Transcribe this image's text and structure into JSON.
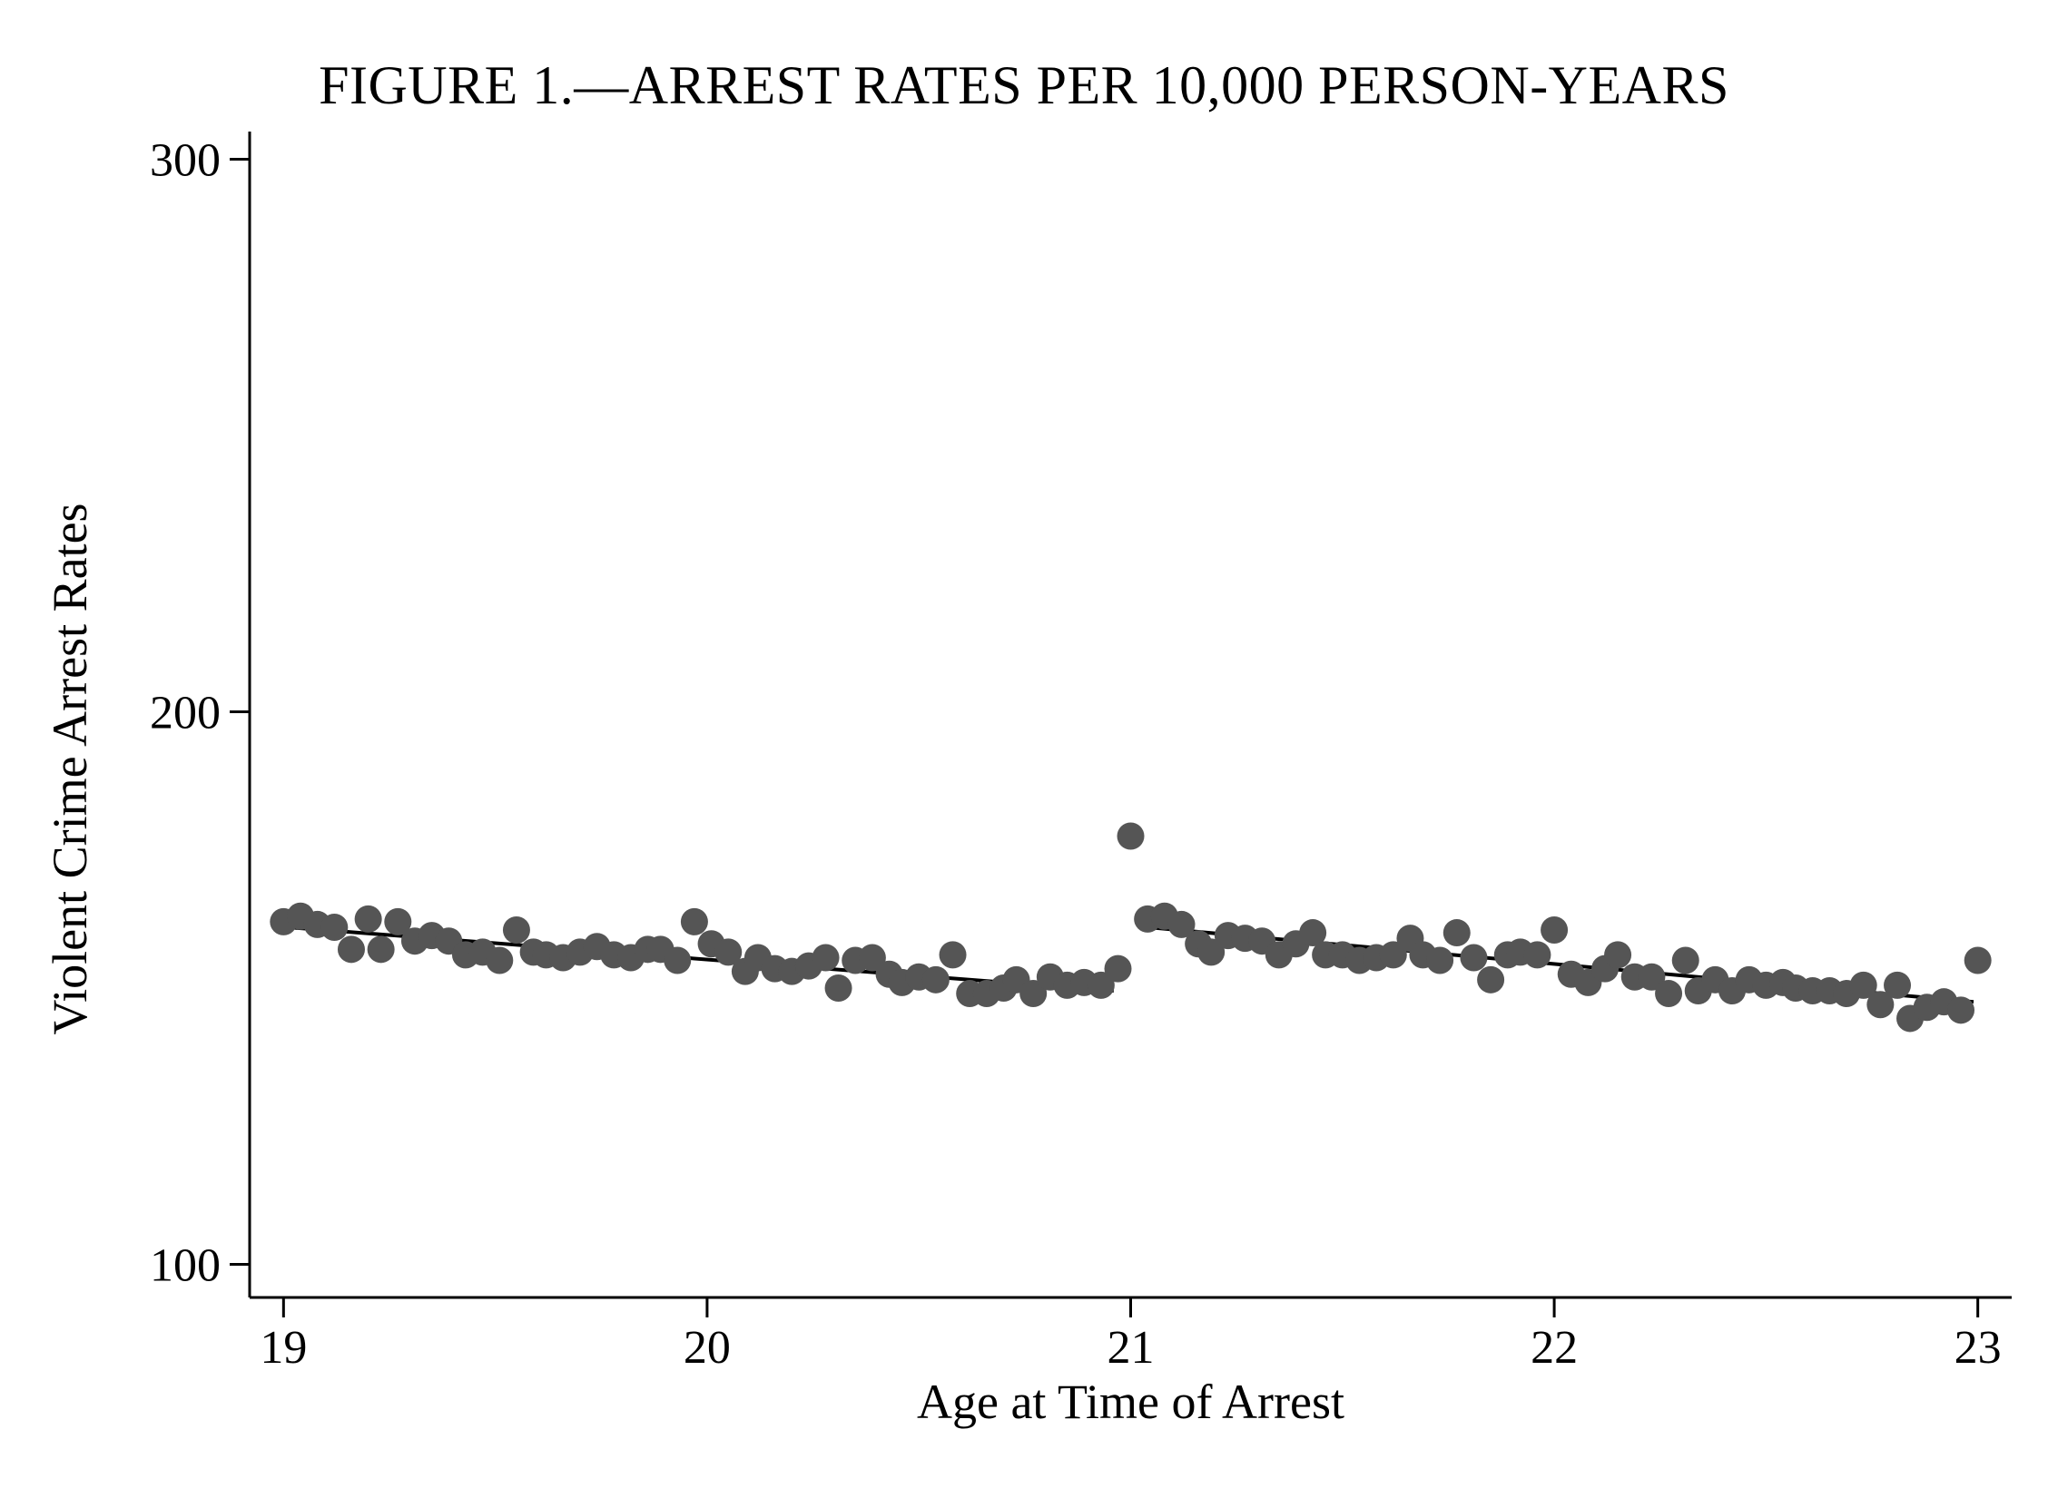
{
  "chart_data": {
    "type": "scatter",
    "title": "FIGURE 1.—ARREST RATES PER 10,000 PERSON-YEARS",
    "xlabel": "Age at Time of Arrest",
    "ylabel": "Violent Crime Arrest Rates",
    "xlim": [
      18.92,
      23.08
    ],
    "ylim": [
      94,
      305
    ],
    "xticks": [
      19,
      20,
      21,
      22,
      23
    ],
    "yticks": [
      100,
      200,
      300
    ],
    "grid": false,
    "legend": "none",
    "colors": {
      "points": "#555555",
      "fit_line": "#000000",
      "axis": "#000000"
    },
    "points": [
      [
        19.0,
        162.0
      ],
      [
        19.04,
        163.0
      ],
      [
        19.08,
        161.5
      ],
      [
        19.12,
        161.0
      ],
      [
        19.16,
        157.0
      ],
      [
        19.2,
        162.5
      ],
      [
        19.23,
        157.0
      ],
      [
        19.27,
        162.0
      ],
      [
        19.31,
        158.5
      ],
      [
        19.35,
        159.5
      ],
      [
        19.39,
        158.5
      ],
      [
        19.43,
        156.0
      ],
      [
        19.47,
        156.5
      ],
      [
        19.51,
        155.0
      ],
      [
        19.55,
        160.5
      ],
      [
        19.59,
        156.5
      ],
      [
        19.62,
        156.0
      ],
      [
        19.66,
        155.5
      ],
      [
        19.7,
        156.5
      ],
      [
        19.74,
        157.5
      ],
      [
        19.78,
        156.0
      ],
      [
        19.82,
        155.5
      ],
      [
        19.86,
        157.0
      ],
      [
        19.89,
        157.0
      ],
      [
        19.93,
        155.0
      ],
      [
        19.97,
        162.0
      ],
      [
        20.01,
        158.0
      ],
      [
        20.05,
        156.5
      ],
      [
        20.09,
        153.0
      ],
      [
        20.12,
        155.5
      ],
      [
        20.16,
        153.5
      ],
      [
        20.2,
        153.0
      ],
      [
        20.24,
        154.0
      ],
      [
        20.28,
        155.5
      ],
      [
        20.31,
        150.0
      ],
      [
        20.35,
        155.0
      ],
      [
        20.39,
        155.5
      ],
      [
        20.43,
        152.5
      ],
      [
        20.46,
        151.0
      ],
      [
        20.5,
        152.0
      ],
      [
        20.54,
        151.5
      ],
      [
        20.58,
        156.0
      ],
      [
        20.62,
        149.0
      ],
      [
        20.66,
        149.0
      ],
      [
        20.7,
        150.0
      ],
      [
        20.73,
        151.5
      ],
      [
        20.77,
        149.0
      ],
      [
        20.81,
        152.0
      ],
      [
        20.85,
        150.5
      ],
      [
        20.89,
        151.0
      ],
      [
        20.93,
        150.5
      ],
      [
        20.97,
        153.5
      ],
      [
        21.0,
        177.5
      ],
      [
        21.04,
        162.5
      ],
      [
        21.08,
        163.0
      ],
      [
        21.12,
        161.5
      ],
      [
        21.16,
        158.0
      ],
      [
        21.19,
        156.5
      ],
      [
        21.23,
        159.5
      ],
      [
        21.27,
        159.0
      ],
      [
        21.31,
        158.5
      ],
      [
        21.35,
        156.0
      ],
      [
        21.39,
        158.0
      ],
      [
        21.43,
        160.0
      ],
      [
        21.46,
        156.0
      ],
      [
        21.5,
        156.0
      ],
      [
        21.54,
        155.0
      ],
      [
        21.58,
        155.5
      ],
      [
        21.62,
        156.0
      ],
      [
        21.66,
        159.0
      ],
      [
        21.69,
        156.0
      ],
      [
        21.73,
        155.0
      ],
      [
        21.77,
        160.0
      ],
      [
        21.81,
        155.5
      ],
      [
        21.85,
        151.5
      ],
      [
        21.89,
        156.0
      ],
      [
        21.92,
        156.5
      ],
      [
        21.96,
        156.0
      ],
      [
        22.0,
        160.5
      ],
      [
        22.04,
        152.5
      ],
      [
        22.08,
        151.0
      ],
      [
        22.12,
        153.5
      ],
      [
        22.15,
        156.0
      ],
      [
        22.19,
        152.0
      ],
      [
        22.23,
        152.0
      ],
      [
        22.27,
        149.0
      ],
      [
        22.31,
        155.0
      ],
      [
        22.34,
        149.5
      ],
      [
        22.38,
        151.5
      ],
      [
        22.42,
        149.5
      ],
      [
        22.46,
        151.5
      ],
      [
        22.5,
        150.5
      ],
      [
        22.54,
        151.0
      ],
      [
        22.57,
        150.0
      ],
      [
        22.61,
        149.5
      ],
      [
        22.65,
        149.5
      ],
      [
        22.69,
        149.0
      ],
      [
        22.73,
        150.5
      ],
      [
        22.77,
        147.0
      ],
      [
        22.81,
        150.5
      ],
      [
        22.84,
        144.5
      ],
      [
        22.88,
        146.5
      ],
      [
        22.92,
        147.5
      ],
      [
        22.96,
        146.0
      ],
      [
        23.0,
        155.0
      ]
    ],
    "fit_lines": [
      {
        "x": [
          19.01,
          20.96
        ],
        "y": [
          161.0,
          149.5
        ]
      },
      {
        "x": [
          21.04,
          22.99
        ],
        "y": [
          161.0,
          147.5
        ]
      }
    ]
  }
}
